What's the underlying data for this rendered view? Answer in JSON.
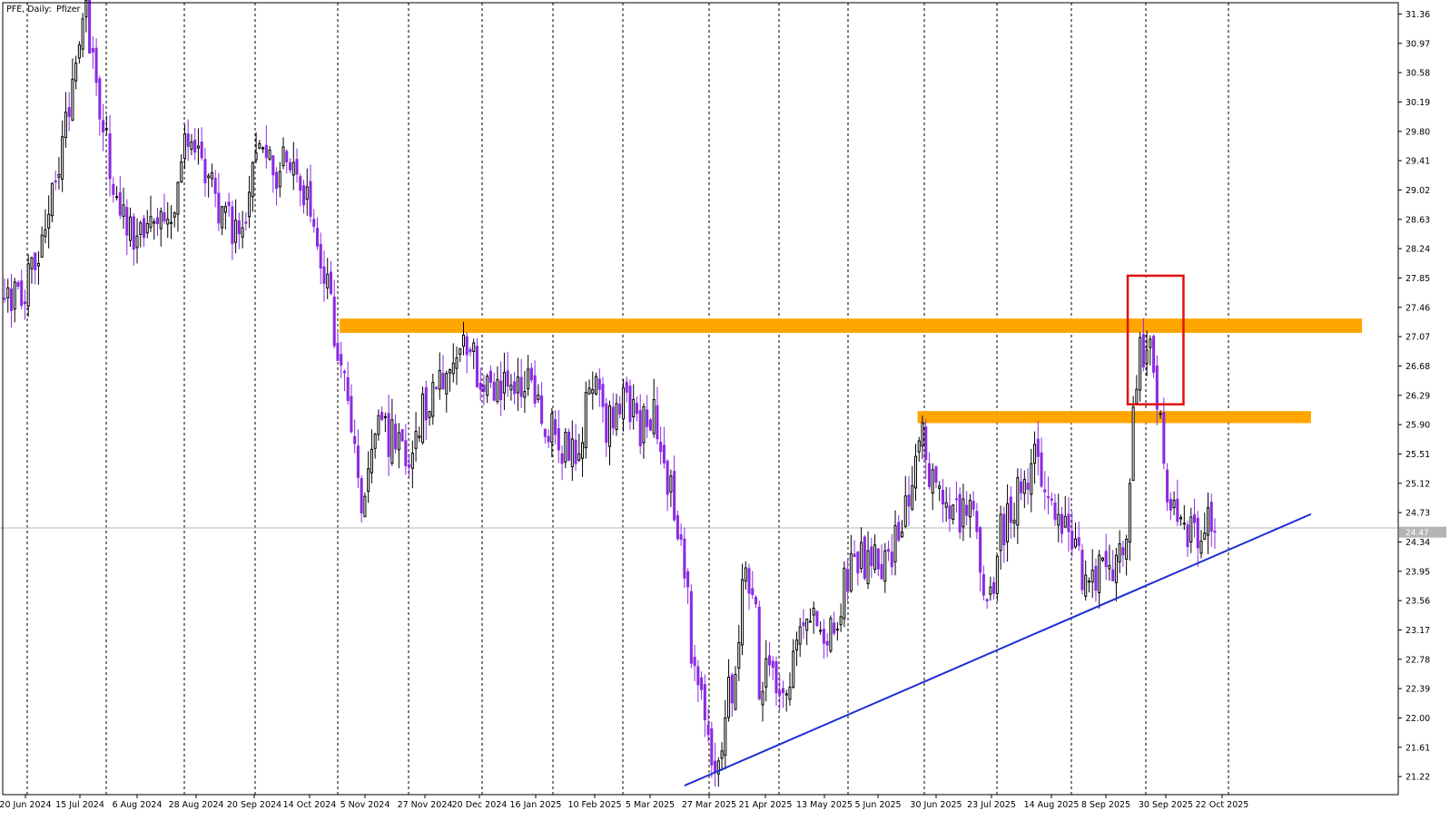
{
  "header": {
    "symbol_label": "PFE, Daily:",
    "name_label": "Pfizer"
  },
  "colors": {
    "bull_candle": "#000000",
    "bear_candle": "#8a2be2",
    "grid": "#000000",
    "resistance_zone": "#ffa500",
    "trendline": "#1f2fd6",
    "highlight_box": "#e11010",
    "current_price_line": "#b4b4b4",
    "current_price_tag": "#b4b4b4"
  },
  "chart_data": {
    "type": "candlestick",
    "title": "",
    "xlabel": "",
    "ylabel": "",
    "ylim": [
      20.98,
      31.51
    ],
    "y_ticks": [
      31.36,
      30.97,
      30.58,
      30.19,
      29.8,
      29.41,
      29.02,
      28.63,
      28.24,
      27.85,
      27.46,
      27.07,
      26.68,
      26.29,
      25.9,
      25.51,
      25.12,
      24.73,
      24.34,
      23.95,
      23.56,
      23.17,
      22.78,
      22.39,
      22.0,
      21.61,
      21.22
    ],
    "y_tick_labels": [
      "31.36",
      "30.97",
      "30.58",
      "30.19",
      "29.80",
      "29.41",
      "29.02",
      "28.63",
      "28.24",
      "27.85",
      "27.46",
      "27.07",
      "26.68",
      "26.29",
      "25.90",
      "25.51",
      "25.12",
      "24.73",
      "24.34",
      "23.95",
      "23.56",
      "23.17",
      "22.78",
      "22.39",
      "22.00",
      "21.61",
      "21.22"
    ],
    "x_tick_labels": [
      "20 Jun 2024",
      "15 Jul 2024",
      "6 Aug 2024",
      "28 Aug 2024",
      "20 Sep 2024",
      "14 Oct 2024",
      "5 Nov 2024",
      "27 Nov 2024",
      "20 Dec 2024",
      "16 Jan 2025",
      "10 Feb 2025",
      "5 Mar 2025",
      "27 Mar 2025",
      "21 Apr 2025",
      "13 May 2025",
      "5 Jun 2025",
      "30 Jun 2025",
      "23 Jul 2025",
      "14 Aug 2025",
      "8 Sep 2025",
      "30 Sep 2025",
      "22 Oct 2025"
    ],
    "current_price": 24.47,
    "current_price_label": "24.47",
    "grid": "vertical dashed",
    "anchors": [
      {
        "d": "2024-06-20",
        "v": 27.5
      },
      {
        "d": "2024-07-01",
        "v": 27.8
      },
      {
        "d": "2024-07-10",
        "v": 29.0
      },
      {
        "d": "2024-07-18",
        "v": 30.4
      },
      {
        "d": "2024-07-24",
        "v": 31.3
      },
      {
        "d": "2024-07-30",
        "v": 30.0
      },
      {
        "d": "2024-08-06",
        "v": 28.7
      },
      {
        "d": "2024-08-14",
        "v": 28.4
      },
      {
        "d": "2024-08-22",
        "v": 28.8
      },
      {
        "d": "2024-08-28",
        "v": 28.6
      },
      {
        "d": "2024-09-05",
        "v": 29.8
      },
      {
        "d": "2024-09-12",
        "v": 29.1
      },
      {
        "d": "2024-09-20",
        "v": 28.6
      },
      {
        "d": "2024-09-27",
        "v": 28.4
      },
      {
        "d": "2024-10-03",
        "v": 29.9
      },
      {
        "d": "2024-10-10",
        "v": 29.2
      },
      {
        "d": "2024-10-14",
        "v": 29.4
      },
      {
        "d": "2024-10-24",
        "v": 28.8
      },
      {
        "d": "2024-11-01",
        "v": 27.6
      },
      {
        "d": "2024-11-06",
        "v": 26.6
      },
      {
        "d": "2024-11-11",
        "v": 25.9
      },
      {
        "d": "2024-11-15",
        "v": 24.7
      },
      {
        "d": "2024-11-21",
        "v": 25.9
      },
      {
        "d": "2024-11-27",
        "v": 25.7
      },
      {
        "d": "2024-12-04",
        "v": 25.6
      },
      {
        "d": "2024-12-10",
        "v": 26.1
      },
      {
        "d": "2024-12-16",
        "v": 26.5
      },
      {
        "d": "2024-12-20",
        "v": 26.6
      },
      {
        "d": "2024-12-27",
        "v": 27.0
      },
      {
        "d": "2025-01-02",
        "v": 26.6
      },
      {
        "d": "2025-01-08",
        "v": 26.2
      },
      {
        "d": "2025-01-16",
        "v": 26.5
      },
      {
        "d": "2025-01-22",
        "v": 26.4
      },
      {
        "d": "2025-01-28",
        "v": 26.0
      },
      {
        "d": "2025-02-04",
        "v": 25.6
      },
      {
        "d": "2025-02-10",
        "v": 25.5
      },
      {
        "d": "2025-02-17",
        "v": 26.5
      },
      {
        "d": "2025-02-24",
        "v": 25.9
      },
      {
        "d": "2025-03-03",
        "v": 26.6
      },
      {
        "d": "2025-03-07",
        "v": 25.8
      },
      {
        "d": "2025-03-14",
        "v": 26.0
      },
      {
        "d": "2025-03-20",
        "v": 25.2
      },
      {
        "d": "2025-03-26",
        "v": 24.5
      },
      {
        "d": "2025-03-28",
        "v": 23.5
      },
      {
        "d": "2025-04-02",
        "v": 22.3
      },
      {
        "d": "2025-04-08",
        "v": 21.4
      },
      {
        "d": "2025-04-14",
        "v": 22.1
      },
      {
        "d": "2025-04-17",
        "v": 22.6
      },
      {
        "d": "2025-04-22",
        "v": 24.0
      },
      {
        "d": "2025-04-28",
        "v": 22.5
      },
      {
        "d": "2025-05-02",
        "v": 22.6
      },
      {
        "d": "2025-05-07",
        "v": 22.2
      },
      {
        "d": "2025-05-13",
        "v": 23.2
      },
      {
        "d": "2025-05-20",
        "v": 23.3
      },
      {
        "d": "2025-05-28",
        "v": 23.2
      },
      {
        "d": "2025-06-05",
        "v": 24.2
      },
      {
        "d": "2025-06-12",
        "v": 24.1
      },
      {
        "d": "2025-06-20",
        "v": 24.0
      },
      {
        "d": "2025-06-30",
        "v": 25.3
      },
      {
        "d": "2025-07-03",
        "v": 25.7
      },
      {
        "d": "2025-07-09",
        "v": 24.9
      },
      {
        "d": "2025-07-15",
        "v": 24.6
      },
      {
        "d": "2025-07-23",
        "v": 24.9
      },
      {
        "d": "2025-07-30",
        "v": 23.5
      },
      {
        "d": "2025-08-04",
        "v": 24.4
      },
      {
        "d": "2025-08-11",
        "v": 24.9
      },
      {
        "d": "2025-08-18",
        "v": 25.6
      },
      {
        "d": "2025-08-25",
        "v": 24.7
      },
      {
        "d": "2025-09-01",
        "v": 24.6
      },
      {
        "d": "2025-09-08",
        "v": 23.9
      },
      {
        "d": "2025-09-15",
        "v": 23.9
      },
      {
        "d": "2025-09-22",
        "v": 23.9
      },
      {
        "d": "2025-09-26",
        "v": 24.9
      },
      {
        "d": "2025-10-01",
        "v": 26.9
      },
      {
        "d": "2025-10-06",
        "v": 26.8
      },
      {
        "d": "2025-10-10",
        "v": 25.5
      },
      {
        "d": "2025-10-16",
        "v": 24.6
      },
      {
        "d": "2025-10-21",
        "v": 24.4
      },
      {
        "d": "2025-10-27",
        "v": 24.6
      },
      {
        "d": "2025-10-31",
        "v": 24.47
      }
    ],
    "annotations": [
      {
        "type": "zone",
        "name": "upper resistance",
        "from": "2024-11-05",
        "to": "2025-12-31",
        "y_low": 27.12,
        "y_high": 27.31
      },
      {
        "type": "zone",
        "name": "lower resistance",
        "from": "2025-07-01",
        "to": "2025-12-10",
        "y_low": 25.92,
        "y_high": 26.08
      },
      {
        "type": "box",
        "name": "breakout box",
        "from": "2025-09-30",
        "to": "2025-10-14",
        "y_low": 26.17,
        "y_high": 27.88
      },
      {
        "type": "trendline",
        "name": "rising support",
        "from": {
          "d": "2025-03-27",
          "v": 21.1
        },
        "to": {
          "d": "2025-12-10",
          "v": 24.71
        }
      }
    ]
  }
}
